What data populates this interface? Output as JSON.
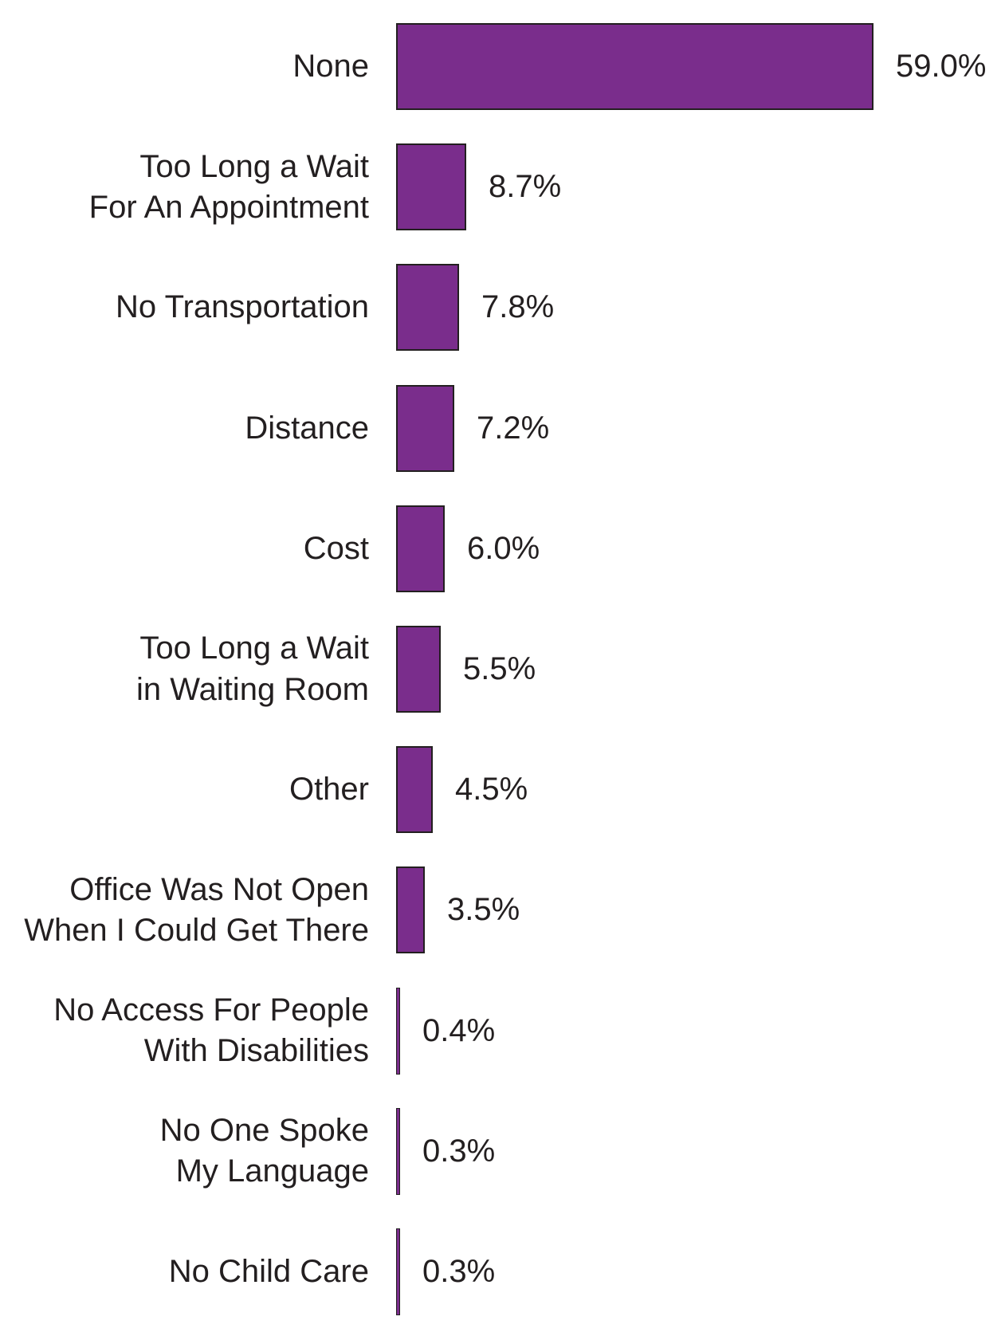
{
  "chart_data": {
    "type": "bar",
    "orientation": "horizontal",
    "title": "",
    "xlabel": "",
    "ylabel": "",
    "unit": "%",
    "xlim": [
      0,
      59
    ],
    "grid": false,
    "legend": "none",
    "axis_visible": false,
    "value_label_position": "outside-right",
    "bar_color": "#7A2D8C",
    "bar_border_color": "#231F20",
    "text_color": "#231F20",
    "background_color": "#FFFFFF",
    "categories": [
      "None",
      "Too Long a Wait For An Appointment",
      "No Transportation",
      "Distance",
      "Cost",
      "Too Long a Wait in Waiting Room",
      "Other",
      "Office Was Not Open When I Could Get There",
      "No Access For People With Disabilities",
      "No One Spoke My Language",
      "No Child Care"
    ],
    "values": [
      59.0,
      8.7,
      7.8,
      7.2,
      6.0,
      5.5,
      4.5,
      3.5,
      0.4,
      0.3,
      0.3
    ],
    "rows": [
      {
        "label": "None",
        "value": 59.0,
        "value_label": "59.0%"
      },
      {
        "label": "Too Long a Wait\nFor An Appointment",
        "value": 8.7,
        "value_label": "8.7%"
      },
      {
        "label": "No Transportation",
        "value": 7.8,
        "value_label": "7.8%"
      },
      {
        "label": "Distance",
        "value": 7.2,
        "value_label": "7.2%"
      },
      {
        "label": "Cost",
        "value": 6.0,
        "value_label": "6.0%"
      },
      {
        "label": "Too Long a Wait\nin Waiting Room",
        "value": 5.5,
        "value_label": "5.5%"
      },
      {
        "label": "Other",
        "value": 4.5,
        "value_label": "4.5%"
      },
      {
        "label": "Office Was Not Open\nWhen I Could Get There",
        "value": 3.5,
        "value_label": "3.5%"
      },
      {
        "label": "No Access For People\nWith Disabilities",
        "value": 0.4,
        "value_label": "0.4%"
      },
      {
        "label": "No One Spoke\nMy Language",
        "value": 0.3,
        "value_label": "0.3%"
      },
      {
        "label": "No Child Care",
        "value": 0.3,
        "value_label": "0.3%"
      }
    ]
  }
}
